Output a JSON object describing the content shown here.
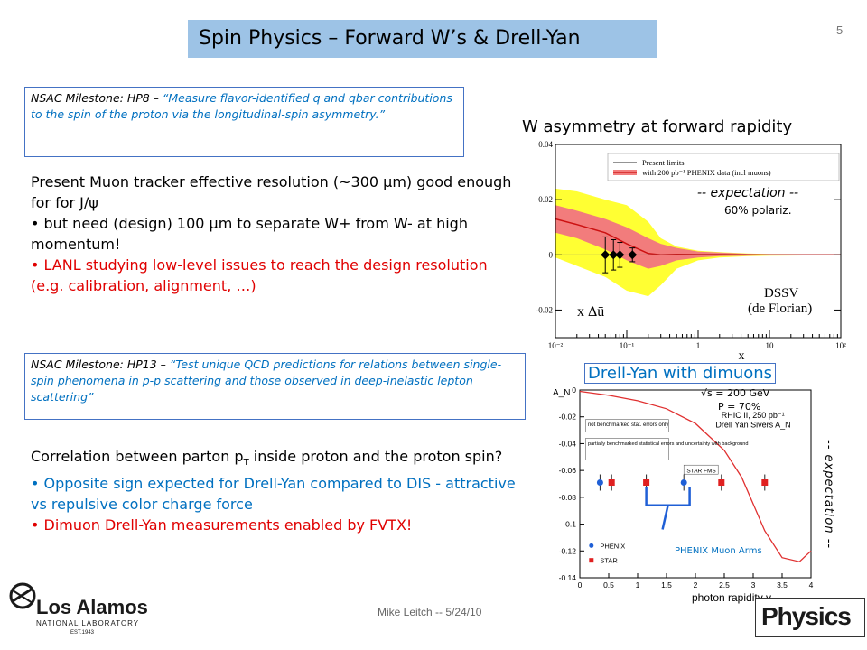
{
  "slide": {
    "title": "Spin Physics – Forward W’s & Drell-Yan",
    "number": "5",
    "footer": "Mike Leitch -- 5/24/10"
  },
  "milestone1": {
    "prefix": "NSAC Milestone: HP8 – ",
    "quote": "“Measure flavor-identified q and qbar contributions to the spin of the proton via the longitudinal-spin asymmetry.”"
  },
  "section1": {
    "intro": "Present Muon tracker effective resolution (~300 μm) good enough for for J/ψ",
    "bullet1": "• but need (design) 100 μm to separate W+ from W- at high momentum!",
    "bullet2": "• LANL studying low-level issues to reach the design resolution (e.g. calibration, alignment, …)"
  },
  "milestone2": {
    "prefix": "NSAC Milestone: HP13 – ",
    "quote": "“Test unique QCD predictions for relations between single-spin phenomena in p-p scattering and those observed in deep-inelastic lepton scattering”"
  },
  "section2": {
    "intro_a": "Correlation between parton p",
    "intro_sub": "T",
    "intro_b": " inside proton and the proton spin?",
    "bullet1": "• Opposite sign expected for Drell-Yan compared to DIS - attractive vs repulsive color charge force",
    "bullet2": "• Dimuon Drell-Yan measurements enabled by FVTX!"
  },
  "w_panel": {
    "heading": "W asymmetry at forward rapidity",
    "expectation": "-- expectation --",
    "polarization": "60% polariz."
  },
  "dy_panel": {
    "heading": "Drell-Yan with dimuons",
    "energy": "√s = 200 GeV",
    "pol": "P = 70%",
    "expectation_vertical": "-- expectation --",
    "muon_arms": "PHENIX Muon Arms"
  },
  "logos": {
    "lanl_line1": "Los Alamos",
    "lanl_line2": "NATIONAL LABORATORY",
    "lanl_line3": "EST.1943",
    "physics": "Physics"
  },
  "chart_data": [
    {
      "type": "line",
      "xlabel": "x",
      "ylabel": "x Δū",
      "xscale": "log",
      "xlim": [
        0.01,
        100
      ],
      "ylim": [
        -0.03,
        0.04
      ],
      "xticks": [
        "10⁻²",
        "10⁻¹",
        "1",
        "10",
        "10²"
      ],
      "yticks": [
        "0.04",
        "0.02",
        "0",
        "-0.02"
      ],
      "legend": [
        "Present limits",
        "with 200 pb⁻¹ PHENIX data (incl muons)"
      ],
      "annotation": [
        "DSSV",
        "(de Florian)"
      ],
      "series": [
        {
          "name": "Present limits",
          "x": [
            0.01,
            0.02,
            0.05,
            0.1,
            0.2,
            0.3,
            0.5,
            1,
            2,
            5,
            10,
            100
          ],
          "upper": [
            0.024,
            0.023,
            0.02,
            0.018,
            0.012,
            0.006,
            0.003,
            0.0015,
            0.001,
            0.0005,
            0.0003,
            0.0002
          ],
          "lower": [
            -0.001,
            -0.004,
            -0.008,
            -0.013,
            -0.015,
            -0.011,
            -0.005,
            -0.002,
            -0.001,
            -0.0005,
            -0.0003,
            -0.0002
          ]
        },
        {
          "name": "with 200 pb⁻¹ PHENIX data (incl muons)",
          "x": [
            0.01,
            0.02,
            0.05,
            0.1,
            0.2,
            0.3,
            0.5,
            1,
            2,
            5,
            10,
            100
          ],
          "upper": [
            0.018,
            0.016,
            0.013,
            0.01,
            0.006,
            0.004,
            0.0025,
            0.0012,
            0.0008,
            0.0004,
            0.0002,
            0.0001
          ],
          "lower": [
            0.008,
            0.006,
            0.002,
            -0.002,
            -0.005,
            -0.004,
            -0.002,
            -0.001,
            -0.0005,
            -0.0003,
            -0.0002,
            -0.0001
          ],
          "central": [
            0.013,
            0.011,
            0.008,
            0.004,
            0.0005,
            0.0,
            0.0002,
            0.0001,
            0.0001,
            0.0,
            0.0,
            0.0
          ]
        }
      ],
      "points": [
        {
          "x": 0.05,
          "y": 0.0,
          "err": 0.0065
        },
        {
          "x": 0.065,
          "y": 0.0,
          "err": 0.0055
        },
        {
          "x": 0.08,
          "y": 0.0,
          "err": 0.0045
        },
        {
          "x": 0.12,
          "y": 0.0,
          "err": 0.0025
        }
      ]
    },
    {
      "type": "scatter",
      "xlabel": "photon rapidity y",
      "ylabel": "A_N",
      "xlim": [
        0,
        4
      ],
      "ylim": [
        -0.14,
        0.0
      ],
      "xticks": [
        "0",
        "0.5",
        "1",
        "1.5",
        "2",
        "2.5",
        "3",
        "3.5",
        "4"
      ],
      "yticks": [
        "0",
        "-0.02",
        "-0.04",
        "-0.06",
        "-0.08",
        "-0.1",
        "-0.12",
        "-0.14"
      ],
      "plot_label": [
        "RHIC II, 250 pb⁻¹",
        "Drell Yan Sivers A_N"
      ],
      "box_labels": [
        "STAR FMS",
        "not benchmarked stat. errors only",
        "partially benchmarked statistical errors and uncertainty with background"
      ],
      "legend": [
        "PHENIX",
        "STAR"
      ],
      "curve": {
        "x": [
          0.0,
          0.5,
          1.0,
          1.5,
          2.0,
          2.5,
          2.8,
          3.0,
          3.2,
          3.5,
          3.8,
          4.0
        ],
        "y": [
          -0.001,
          -0.004,
          -0.008,
          -0.014,
          -0.025,
          -0.045,
          -0.065,
          -0.085,
          -0.105,
          -0.125,
          -0.128,
          -0.12
        ]
      },
      "series": [
        {
          "name": "PHENIX",
          "x": [
            0.35,
            1.8
          ],
          "y": [
            -0.069,
            -0.069
          ]
        },
        {
          "name": "STAR",
          "x": [
            0.55,
            1.15,
            2.45,
            3.2
          ],
          "y": [
            -0.069,
            -0.069,
            -0.069,
            -0.069
          ]
        }
      ]
    }
  ]
}
